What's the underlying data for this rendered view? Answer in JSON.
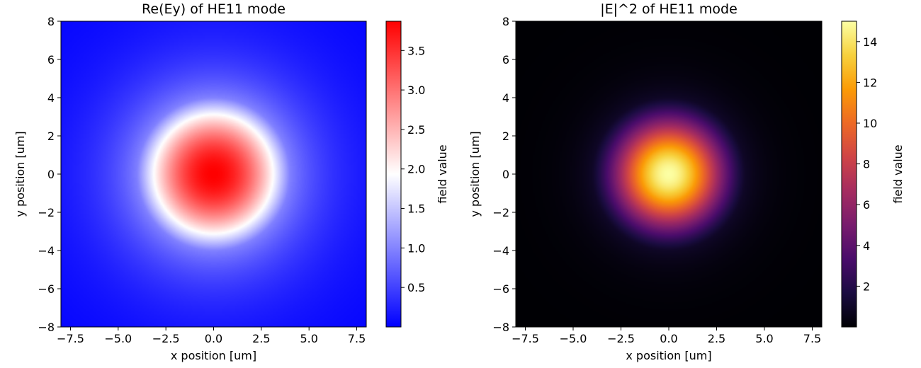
{
  "chart_data": [
    {
      "type": "heatmap",
      "title": "Re(Ey) of HE11 mode",
      "xlabel": "x position [um]",
      "ylabel": "y position [um]",
      "xlim": [
        -8,
        8
      ],
      "ylim": [
        -8,
        8
      ],
      "xticks": [
        "−7.5",
        "−5.0",
        "−2.5",
        "0.0",
        "2.5",
        "5.0",
        "7.5"
      ],
      "xtick_values": [
        -7.5,
        -5.0,
        -2.5,
        0.0,
        2.5,
        5.0,
        7.5
      ],
      "yticks": [
        "−8",
        "−6",
        "−4",
        "−2",
        "0",
        "2",
        "4",
        "6",
        "8"
      ],
      "ytick_values": [
        -8,
        -6,
        -4,
        -2,
        0,
        2,
        4,
        6,
        8
      ],
      "colormap": "bwr",
      "colormap_stops": [
        "#0000ff",
        "#ffffff",
        "#ff0000"
      ],
      "vmin": 0.0,
      "vmax": 3.87,
      "center_value": 3.87,
      "core_radius_um": 4.0,
      "colorbar_label": "field value",
      "colorbar_ticks": [
        "0.5",
        "1.0",
        "1.5",
        "2.0",
        "2.5",
        "3.0",
        "3.5"
      ],
      "colorbar_tick_values": [
        0.5,
        1.0,
        1.5,
        2.0,
        2.5,
        3.0,
        3.5
      ]
    },
    {
      "type": "heatmap",
      "title": "|E|^2 of HE11 mode",
      "xlabel": "x position [um]",
      "ylabel": "y position [um]",
      "xlim": [
        -8,
        8
      ],
      "ylim": [
        -8,
        8
      ],
      "xticks": [
        "−7.5",
        "−5.0",
        "−2.5",
        "0.0",
        "2.5",
        "5.0",
        "7.5"
      ],
      "xtick_values": [
        -7.5,
        -5.0,
        -2.5,
        0.0,
        2.5,
        5.0,
        7.5
      ],
      "yticks": [
        "−8",
        "−6",
        "−4",
        "−2",
        "0",
        "2",
        "4",
        "6",
        "8"
      ],
      "ytick_values": [
        -8,
        -6,
        -4,
        -2,
        0,
        2,
        4,
        6,
        8
      ],
      "colormap": "inferno",
      "colormap_stops": [
        "#000004",
        "#1b0c41",
        "#4a0c6b",
        "#781c6d",
        "#a52c60",
        "#cf4446",
        "#ed6925",
        "#fb9b06",
        "#f7d13d",
        "#fcffa4"
      ],
      "vmin": 0.0,
      "vmax": 15.0,
      "center_value": 15.0,
      "core_radius_um": 4.0,
      "colorbar_label": "field value",
      "colorbar_ticks": [
        "2",
        "4",
        "6",
        "8",
        "10",
        "12",
        "14"
      ],
      "colorbar_tick_values": [
        2,
        4,
        6,
        8,
        10,
        12,
        14
      ]
    }
  ]
}
